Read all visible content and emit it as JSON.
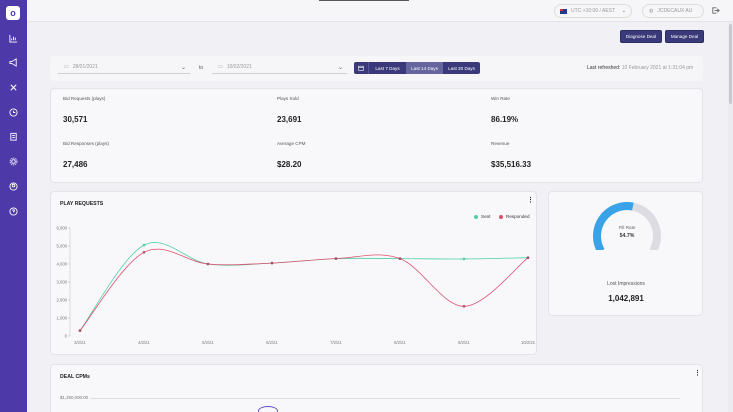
{
  "header": {
    "timezone": "UTC +10:00 / AEST",
    "account": "JCDECAUX AU"
  },
  "actions": {
    "diagnose_label": "Diagnose Deal",
    "manage_label": "Manage Deal"
  },
  "filters": {
    "start_date": "28/01/2021",
    "to_label": "to",
    "end_date": "10/02/2021",
    "ranges": [
      "Last 7 Days",
      "Last 14 Days",
      "Last 30 Days"
    ],
    "active_range": "Last 14 Days",
    "refreshed_label": "Last refreshed:",
    "refreshed_value": "10 February 2021 at 1:31:04 pm"
  },
  "metrics": [
    {
      "label": "Bid Requests (plays)",
      "value": "30,571"
    },
    {
      "label": "Plays Sold",
      "value": "23,691"
    },
    {
      "label": "Win Rate",
      "value": "86.19%"
    },
    {
      "label": "Bid Responses (plays)",
      "value": "27,486"
    },
    {
      "label": "Average CPM",
      "value": "$28.20"
    },
    {
      "label": "Revenue",
      "value": "$35,516.33"
    }
  ],
  "play_requests": {
    "title": "PLAY REQUESTS"
  },
  "chart_data": {
    "type": "line",
    "title": "PLAY REQUESTS",
    "categories": [
      "3/2/21",
      "4/2/21",
      "5/2/21",
      "6/2/21",
      "7/2/21",
      "8/2/21",
      "9/2/21",
      "10/2/21"
    ],
    "series": [
      {
        "name": "Sent",
        "color": "#4fcfa2",
        "values": [
          300,
          5050,
          4000,
          4050,
          4300,
          4300,
          4280,
          4350
        ]
      },
      {
        "name": "Responded",
        "color": "#e0506e",
        "values": [
          300,
          4650,
          4000,
          4050,
          4300,
          4300,
          1650,
          4350
        ]
      }
    ],
    "yticks": [
      "0",
      "1,000",
      "2,000",
      "3,000",
      "4,000",
      "5,000",
      "6,000"
    ],
    "ylim": [
      0,
      6000
    ],
    "legend_position": "top-right",
    "grid": false
  },
  "fill_rate": {
    "label": "Fill Rate",
    "value": "54.7%",
    "fraction": 0.547,
    "color": "#3aa3e8",
    "lost_label": "Lost Impressions",
    "lost_value": "1,042,891"
  },
  "deal_cpms": {
    "title": "DEAL CPMs",
    "first_tick": "$1,250,000.00"
  },
  "colors": {
    "sidebar": "#4d3aa8",
    "button": "#3a3a7a"
  }
}
